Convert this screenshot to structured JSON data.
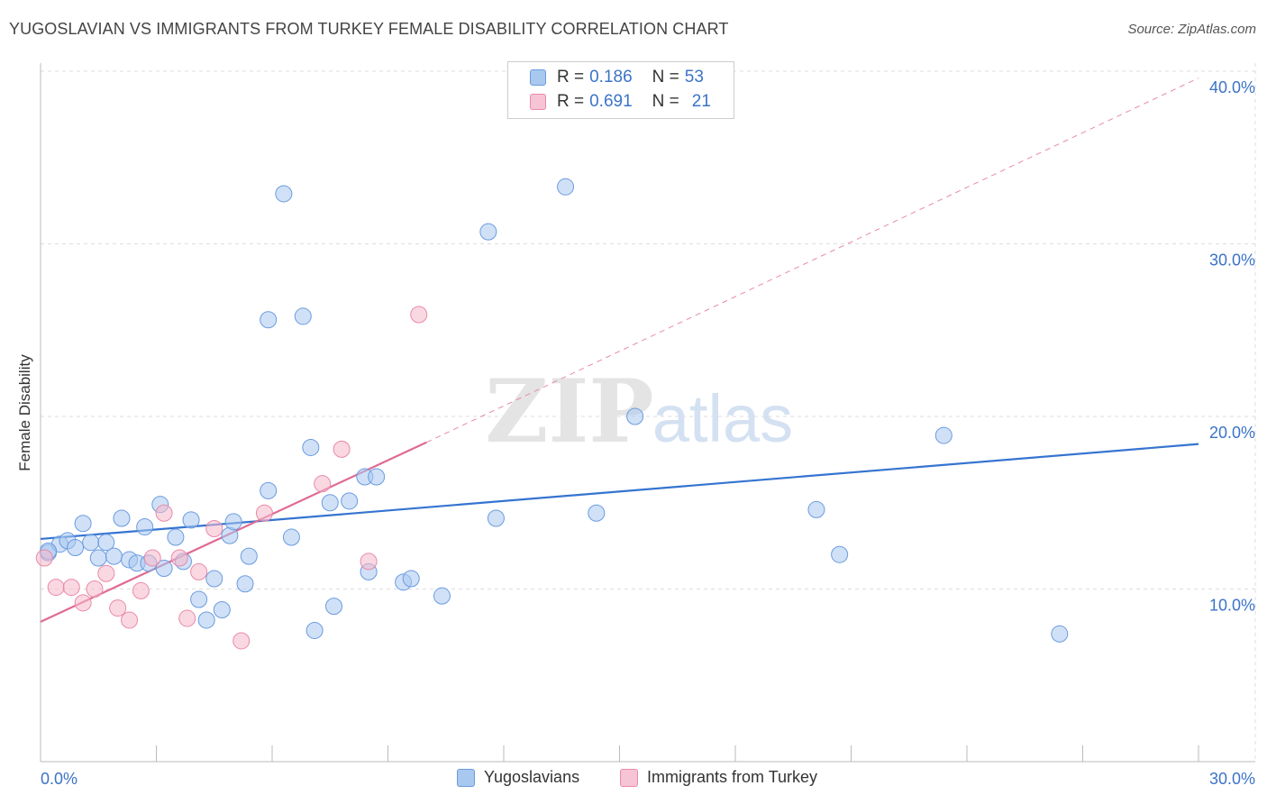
{
  "header": {
    "title": "YUGOSLAVIAN VS IMMIGRANTS FROM TURKEY FEMALE DISABILITY CORRELATION CHART",
    "source": "Source: ZipAtlas.com"
  },
  "watermark": {
    "zip": "ZIP",
    "atlas": "atlas"
  },
  "legend_top": {
    "rows": [
      {
        "r_label": "R = ",
        "r_value": "0.186",
        "n_label": "N = ",
        "n_value": "53"
      },
      {
        "r_label": "R = ",
        "r_value": "0.691",
        "n_label": "N = ",
        "n_value": "21"
      }
    ]
  },
  "legend_bottom": {
    "items": [
      {
        "label": "Yugoslavians"
      },
      {
        "label": "Immigrants from Turkey"
      }
    ]
  },
  "colors": {
    "blue_fill": "#a9c8f0",
    "blue_stroke": "#6a9be0",
    "blue_line": "#3574d0",
    "pink_fill": "#f6b8cb",
    "pink_stroke": "#e88aa8",
    "pink_line": "#e06a92",
    "grid": "#dddddd",
    "tick_text": "#3b73c8"
  },
  "chart_data": {
    "type": "scatter",
    "title": "YUGOSLAVIAN VS IMMIGRANTS FROM TURKEY FEMALE DISABILITY CORRELATION CHART",
    "xlabel": "",
    "ylabel": "Female Disability",
    "xlim": [
      0,
      30
    ],
    "ylim": [
      0,
      40
    ],
    "x_tick_labels": [
      "0.0%",
      "30.0%"
    ],
    "y_ticks": [
      10,
      20,
      30,
      40
    ],
    "y_tick_labels": [
      "10.0%",
      "20.0%",
      "30.0%",
      "40.0%"
    ],
    "grid": true,
    "series": [
      {
        "name": "Yugoslavians",
        "r": 0.186,
        "n": 53,
        "trend": {
          "x": [
            0,
            30
          ],
          "y": [
            12.9,
            18.4
          ],
          "dashed_extension": false
        },
        "points": [
          {
            "x": 0.2,
            "y": 12.1
          },
          {
            "x": 0.5,
            "y": 12.6
          },
          {
            "x": 0.7,
            "y": 12.8
          },
          {
            "x": 0.9,
            "y": 12.4
          },
          {
            "x": 1.1,
            "y": 13.8
          },
          {
            "x": 1.3,
            "y": 12.7
          },
          {
            "x": 1.5,
            "y": 11.8
          },
          {
            "x": 1.7,
            "y": 12.7
          },
          {
            "x": 1.9,
            "y": 11.9
          },
          {
            "x": 2.1,
            "y": 14.1
          },
          {
            "x": 2.3,
            "y": 11.7
          },
          {
            "x": 2.5,
            "y": 11.5
          },
          {
            "x": 2.7,
            "y": 13.6
          },
          {
            "x": 2.8,
            "y": 11.5
          },
          {
            "x": 3.1,
            "y": 14.9
          },
          {
            "x": 3.2,
            "y": 11.2
          },
          {
            "x": 3.5,
            "y": 13.0
          },
          {
            "x": 3.7,
            "y": 11.6
          },
          {
            "x": 3.9,
            "y": 14.0
          },
          {
            "x": 4.1,
            "y": 9.4
          },
          {
            "x": 4.3,
            "y": 8.2
          },
          {
            "x": 4.5,
            "y": 10.6
          },
          {
            "x": 4.7,
            "y": 8.8
          },
          {
            "x": 4.9,
            "y": 13.1
          },
          {
            "x": 5.0,
            "y": 13.9
          },
          {
            "x": 5.3,
            "y": 10.3
          },
          {
            "x": 5.4,
            "y": 11.9
          },
          {
            "x": 5.9,
            "y": 25.6
          },
          {
            "x": 5.9,
            "y": 15.7
          },
          {
            "x": 6.3,
            "y": 32.9
          },
          {
            "x": 6.5,
            "y": 13.0
          },
          {
            "x": 6.8,
            "y": 25.8
          },
          {
            "x": 7.0,
            "y": 18.2
          },
          {
            "x": 7.1,
            "y": 7.6
          },
          {
            "x": 7.5,
            "y": 15.0
          },
          {
            "x": 7.6,
            "y": 9.0
          },
          {
            "x": 8.0,
            "y": 15.1
          },
          {
            "x": 8.4,
            "y": 16.5
          },
          {
            "x": 8.5,
            "y": 11.0
          },
          {
            "x": 8.7,
            "y": 16.5
          },
          {
            "x": 9.4,
            "y": 10.4
          },
          {
            "x": 9.6,
            "y": 10.6
          },
          {
            "x": 10.4,
            "y": 9.6
          },
          {
            "x": 11.6,
            "y": 30.7
          },
          {
            "x": 11.8,
            "y": 14.1
          },
          {
            "x": 13.6,
            "y": 33.3
          },
          {
            "x": 14.4,
            "y": 14.4
          },
          {
            "x": 15.4,
            "y": 20.0
          },
          {
            "x": 20.1,
            "y": 14.6
          },
          {
            "x": 20.7,
            "y": 12.0
          },
          {
            "x": 23.4,
            "y": 18.9
          },
          {
            "x": 26.4,
            "y": 7.4
          },
          {
            "x": 0.2,
            "y": 12.2
          }
        ]
      },
      {
        "name": "Immigrants from Turkey",
        "r": 0.691,
        "n": 21,
        "trend": {
          "x": [
            0,
            10
          ],
          "y": [
            8.1,
            18.5
          ],
          "dashed_extension": true,
          "dashed_to": {
            "x": [
              10,
              30
            ],
            "y": [
              18.5,
              39.6
            ]
          }
        },
        "points": [
          {
            "x": 0.1,
            "y": 11.8
          },
          {
            "x": 0.4,
            "y": 10.1
          },
          {
            "x": 0.8,
            "y": 10.1
          },
          {
            "x": 1.1,
            "y": 9.2
          },
          {
            "x": 1.4,
            "y": 10.0
          },
          {
            "x": 1.7,
            "y": 10.9
          },
          {
            "x": 2.0,
            "y": 8.9
          },
          {
            "x": 2.3,
            "y": 8.2
          },
          {
            "x": 2.6,
            "y": 9.9
          },
          {
            "x": 2.9,
            "y": 11.8
          },
          {
            "x": 3.2,
            "y": 14.4
          },
          {
            "x": 3.6,
            "y": 11.8
          },
          {
            "x": 3.8,
            "y": 8.3
          },
          {
            "x": 4.1,
            "y": 11.0
          },
          {
            "x": 4.5,
            "y": 13.5
          },
          {
            "x": 5.2,
            "y": 7.0
          },
          {
            "x": 5.8,
            "y": 14.4
          },
          {
            "x": 7.3,
            "y": 16.1
          },
          {
            "x": 7.8,
            "y": 18.1
          },
          {
            "x": 8.5,
            "y": 11.6
          },
          {
            "x": 9.8,
            "y": 25.9
          }
        ]
      }
    ]
  }
}
